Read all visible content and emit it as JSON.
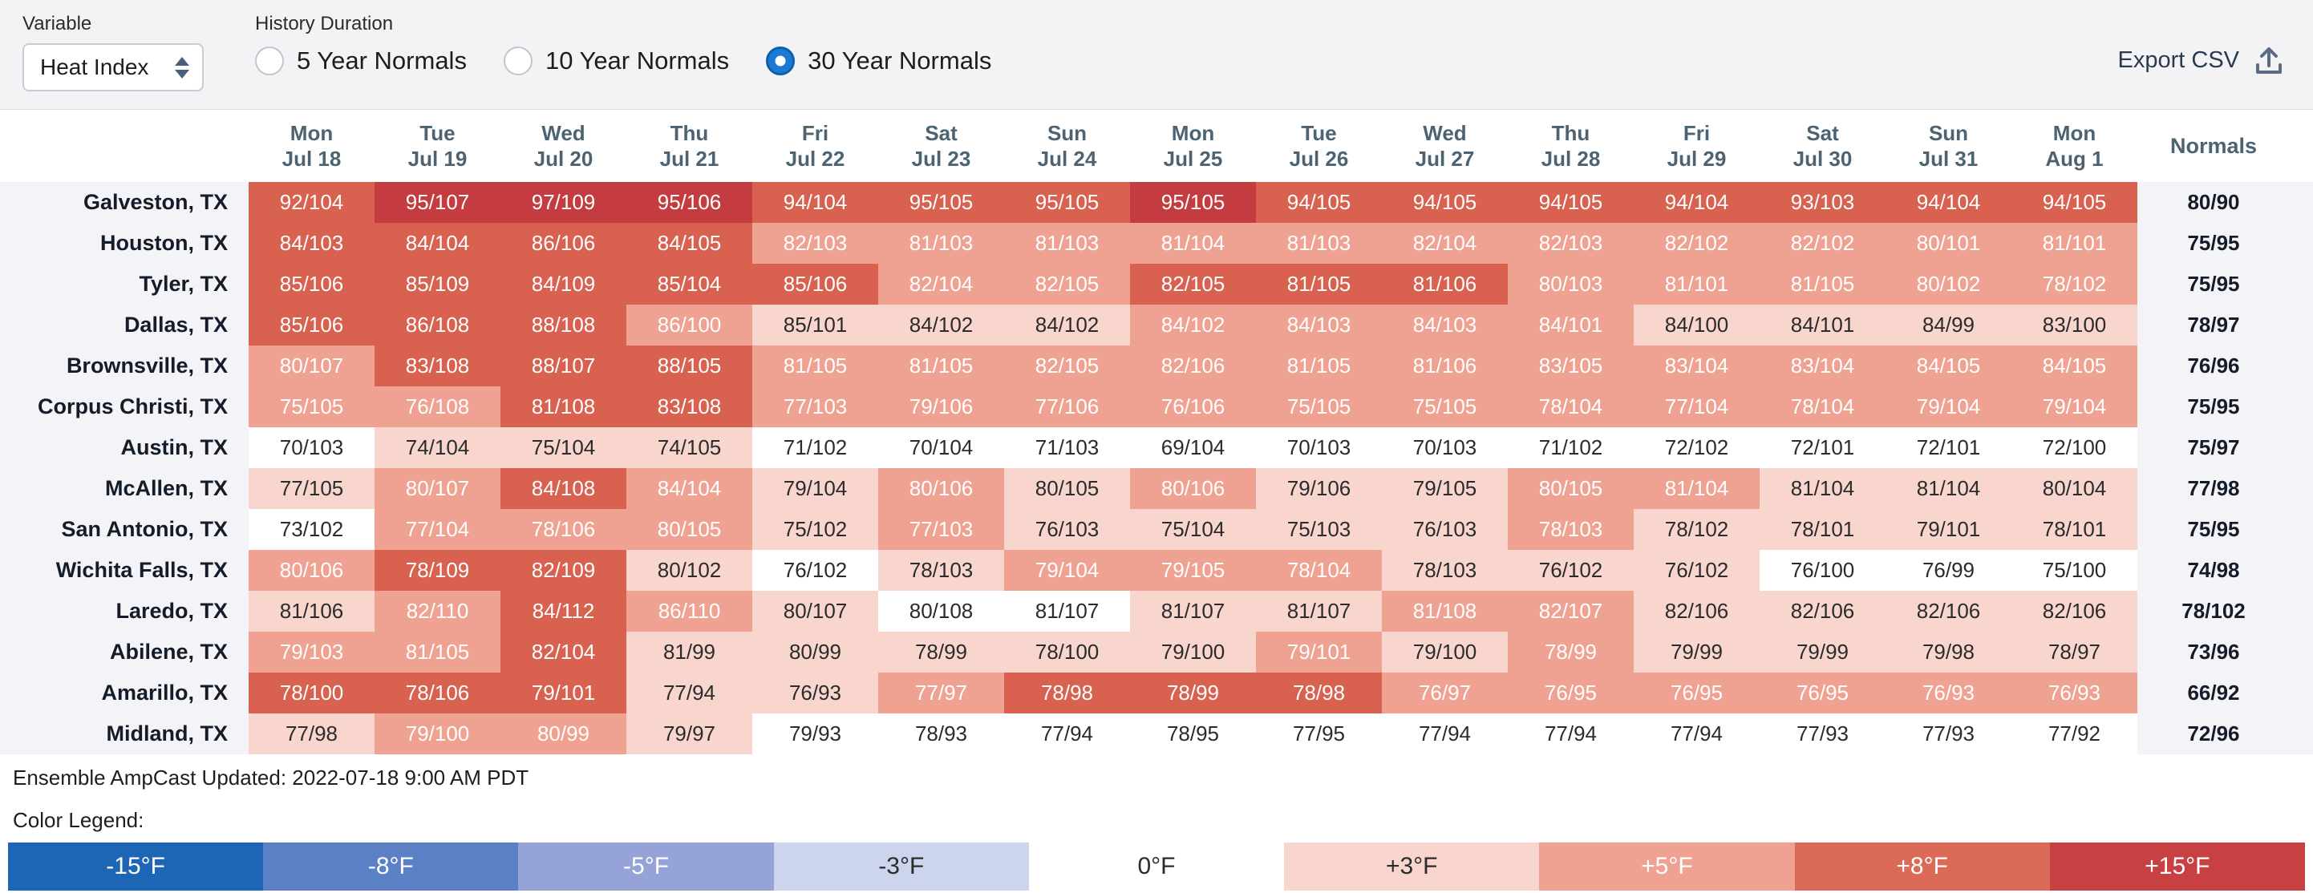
{
  "controls": {
    "variable_label": "Variable",
    "variable_value": "Heat Index",
    "history_label": "History Duration",
    "radios": [
      {
        "label": "5 Year Normals",
        "selected": false
      },
      {
        "label": "10 Year Normals",
        "selected": false
      },
      {
        "label": "30 Year Normals",
        "selected": true
      }
    ],
    "export_label": "Export CSV"
  },
  "table": {
    "normals_header": "Normals",
    "columns": [
      {
        "day": "Mon",
        "date": "Jul 18"
      },
      {
        "day": "Tue",
        "date": "Jul 19"
      },
      {
        "day": "Wed",
        "date": "Jul 20"
      },
      {
        "day": "Thu",
        "date": "Jul 21"
      },
      {
        "day": "Fri",
        "date": "Jul 22"
      },
      {
        "day": "Sat",
        "date": "Jul 23"
      },
      {
        "day": "Sun",
        "date": "Jul 24"
      },
      {
        "day": "Mon",
        "date": "Jul 25"
      },
      {
        "day": "Tue",
        "date": "Jul 26"
      },
      {
        "day": "Wed",
        "date": "Jul 27"
      },
      {
        "day": "Thu",
        "date": "Jul 28"
      },
      {
        "day": "Fri",
        "date": "Jul 29"
      },
      {
        "day": "Sat",
        "date": "Jul 30"
      },
      {
        "day": "Sun",
        "date": "Jul 31"
      },
      {
        "day": "Mon",
        "date": "Aug 1"
      }
    ],
    "rows": [
      {
        "city": "Galveston, TX",
        "normals": "80/90",
        "values": [
          "92/104",
          "95/107",
          "97/109",
          "95/106",
          "94/104",
          "95/105",
          "95/105",
          "95/105",
          "94/105",
          "94/105",
          "94/105",
          "94/104",
          "93/103",
          "94/104",
          "94/105"
        ],
        "tiers": [
          3,
          4,
          4,
          4,
          3,
          3,
          3,
          4,
          3,
          3,
          3,
          3,
          3,
          3,
          3
        ]
      },
      {
        "city": "Houston, TX",
        "normals": "75/95",
        "values": [
          "84/103",
          "84/104",
          "86/106",
          "84/105",
          "82/103",
          "81/103",
          "81/103",
          "81/104",
          "81/103",
          "82/104",
          "82/103",
          "82/102",
          "82/102",
          "80/101",
          "81/101"
        ],
        "tiers": [
          3,
          3,
          3,
          3,
          2,
          2,
          2,
          2,
          2,
          2,
          2,
          2,
          2,
          2,
          2
        ]
      },
      {
        "city": "Tyler, TX",
        "normals": "75/95",
        "values": [
          "85/106",
          "85/109",
          "84/109",
          "85/104",
          "85/106",
          "82/104",
          "82/105",
          "82/105",
          "81/105",
          "81/106",
          "80/103",
          "81/101",
          "81/105",
          "80/102",
          "78/102"
        ],
        "tiers": [
          3,
          3,
          3,
          3,
          3,
          2,
          2,
          3,
          3,
          3,
          2,
          2,
          2,
          2,
          2
        ]
      },
      {
        "city": "Dallas, TX",
        "normals": "78/97",
        "values": [
          "85/106",
          "86/108",
          "88/108",
          "86/100",
          "85/101",
          "84/102",
          "84/102",
          "84/102",
          "84/103",
          "84/103",
          "84/101",
          "84/100",
          "84/101",
          "84/99",
          "83/100"
        ],
        "tiers": [
          3,
          3,
          3,
          2,
          1,
          1,
          1,
          2,
          2,
          2,
          2,
          1,
          1,
          1,
          1
        ]
      },
      {
        "city": "Brownsville, TX",
        "normals": "76/96",
        "values": [
          "80/107",
          "83/108",
          "88/107",
          "88/105",
          "81/105",
          "81/105",
          "82/105",
          "82/106",
          "81/105",
          "81/106",
          "83/105",
          "83/104",
          "83/104",
          "84/105",
          "84/105"
        ],
        "tiers": [
          2,
          3,
          3,
          3,
          2,
          2,
          2,
          2,
          2,
          2,
          2,
          2,
          2,
          2,
          2
        ]
      },
      {
        "city": "Corpus Christi, TX",
        "normals": "75/95",
        "values": [
          "75/105",
          "76/108",
          "81/108",
          "83/108",
          "77/103",
          "79/106",
          "77/106",
          "76/106",
          "75/105",
          "75/105",
          "78/104",
          "77/104",
          "78/104",
          "79/104",
          "79/104"
        ],
        "tiers": [
          2,
          2,
          3,
          3,
          2,
          2,
          2,
          2,
          2,
          2,
          2,
          2,
          2,
          2,
          2
        ]
      },
      {
        "city": "Austin, TX",
        "normals": "75/97",
        "values": [
          "70/103",
          "74/104",
          "75/104",
          "74/105",
          "71/102",
          "70/104",
          "71/103",
          "69/104",
          "70/103",
          "70/103",
          "71/102",
          "72/102",
          "72/101",
          "72/101",
          "72/100"
        ],
        "tiers": [
          0,
          1,
          1,
          1,
          0,
          0,
          0,
          0,
          0,
          0,
          0,
          0,
          0,
          0,
          0
        ]
      },
      {
        "city": "McAllen, TX",
        "normals": "77/98",
        "values": [
          "77/105",
          "80/107",
          "84/108",
          "84/104",
          "79/104",
          "80/106",
          "80/105",
          "80/106",
          "79/106",
          "79/105",
          "80/105",
          "81/104",
          "81/104",
          "81/104",
          "80/104"
        ],
        "tiers": [
          1,
          2,
          3,
          2,
          1,
          2,
          1,
          2,
          1,
          1,
          2,
          2,
          1,
          1,
          1
        ]
      },
      {
        "city": "San Antonio, TX",
        "normals": "75/95",
        "values": [
          "73/102",
          "77/104",
          "78/106",
          "80/105",
          "75/102",
          "77/103",
          "76/103",
          "75/104",
          "75/103",
          "76/103",
          "78/103",
          "78/102",
          "78/101",
          "79/101",
          "78/101"
        ],
        "tiers": [
          0,
          2,
          2,
          2,
          1,
          2,
          1,
          1,
          1,
          1,
          2,
          1,
          1,
          1,
          1
        ]
      },
      {
        "city": "Wichita Falls, TX",
        "normals": "74/98",
        "values": [
          "80/106",
          "78/109",
          "82/109",
          "80/102",
          "76/102",
          "78/103",
          "79/104",
          "79/105",
          "78/104",
          "78/103",
          "76/102",
          "76/102",
          "76/100",
          "76/99",
          "75/100"
        ],
        "tiers": [
          2,
          3,
          3,
          1,
          0,
          1,
          2,
          2,
          2,
          1,
          1,
          1,
          0,
          0,
          0
        ]
      },
      {
        "city": "Laredo, TX",
        "normals": "78/102",
        "values": [
          "81/106",
          "82/110",
          "84/112",
          "86/110",
          "80/107",
          "80/108",
          "81/107",
          "81/107",
          "81/107",
          "81/108",
          "82/107",
          "82/106",
          "82/106",
          "82/106",
          "82/106"
        ],
        "tiers": [
          1,
          2,
          3,
          2,
          1,
          0,
          0,
          1,
          1,
          2,
          2,
          1,
          1,
          1,
          1
        ]
      },
      {
        "city": "Abilene, TX",
        "normals": "73/96",
        "values": [
          "79/103",
          "81/105",
          "82/104",
          "81/99",
          "80/99",
          "78/99",
          "78/100",
          "79/100",
          "79/101",
          "79/100",
          "78/99",
          "79/99",
          "79/99",
          "79/98",
          "78/97"
        ],
        "tiers": [
          2,
          2,
          3,
          1,
          1,
          1,
          1,
          1,
          2,
          1,
          2,
          1,
          1,
          1,
          1
        ]
      },
      {
        "city": "Amarillo, TX",
        "normals": "66/92",
        "values": [
          "78/100",
          "78/106",
          "79/101",
          "77/94",
          "76/93",
          "77/97",
          "78/98",
          "78/99",
          "78/98",
          "76/97",
          "76/95",
          "76/95",
          "76/95",
          "76/93",
          "76/93"
        ],
        "tiers": [
          3,
          3,
          3,
          1,
          1,
          2,
          3,
          3,
          3,
          2,
          2,
          2,
          2,
          2,
          2
        ]
      },
      {
        "city": "Midland, TX",
        "normals": "72/96",
        "values": [
          "77/98",
          "79/100",
          "80/99",
          "79/97",
          "79/93",
          "78/93",
          "77/94",
          "78/95",
          "77/95",
          "77/94",
          "77/94",
          "77/94",
          "77/93",
          "77/93",
          "77/92"
        ],
        "tiers": [
          1,
          2,
          2,
          1,
          0,
          0,
          0,
          0,
          0,
          0,
          0,
          0,
          0,
          0,
          0
        ]
      }
    ]
  },
  "footer": {
    "updated": "Ensemble AmpCast Updated: 2022-07-18 9:00 AM PDT",
    "legend_title": "Color Legend:",
    "legend": [
      {
        "label": "-15°F",
        "color": "#1d65b5",
        "text_color": "#ffffff"
      },
      {
        "label": "-8°F",
        "color": "#5c80c6",
        "text_color": "#ffffff"
      },
      {
        "label": "-5°F",
        "color": "#95a3d8",
        "text_color": "#ffffff"
      },
      {
        "label": "-3°F",
        "color": "#ccd4ee",
        "text_color": "#2b2b2b"
      },
      {
        "label": "0°F",
        "color": "#ffffff",
        "text_color": "#2b2b2b"
      },
      {
        "label": "+3°F",
        "color": "#f8d6ce",
        "text_color": "#2b2b2b"
      },
      {
        "label": "+5°F",
        "color": "#efa291",
        "text_color": "#ffffff"
      },
      {
        "label": "+8°F",
        "color": "#db6a56",
        "text_color": "#ffffff"
      },
      {
        "label": "+15°F",
        "color": "#c74042",
        "text_color": "#ffffff"
      }
    ]
  },
  "colors": {
    "accent_blue": "#1d7ad2",
    "tier_colors": [
      "#ffffff",
      "#f8d6ce",
      "#efa291",
      "#d8614f",
      "#c53c40"
    ],
    "cell_text_dark": "#2b2b2b",
    "cell_text_light": "#ffffff"
  }
}
